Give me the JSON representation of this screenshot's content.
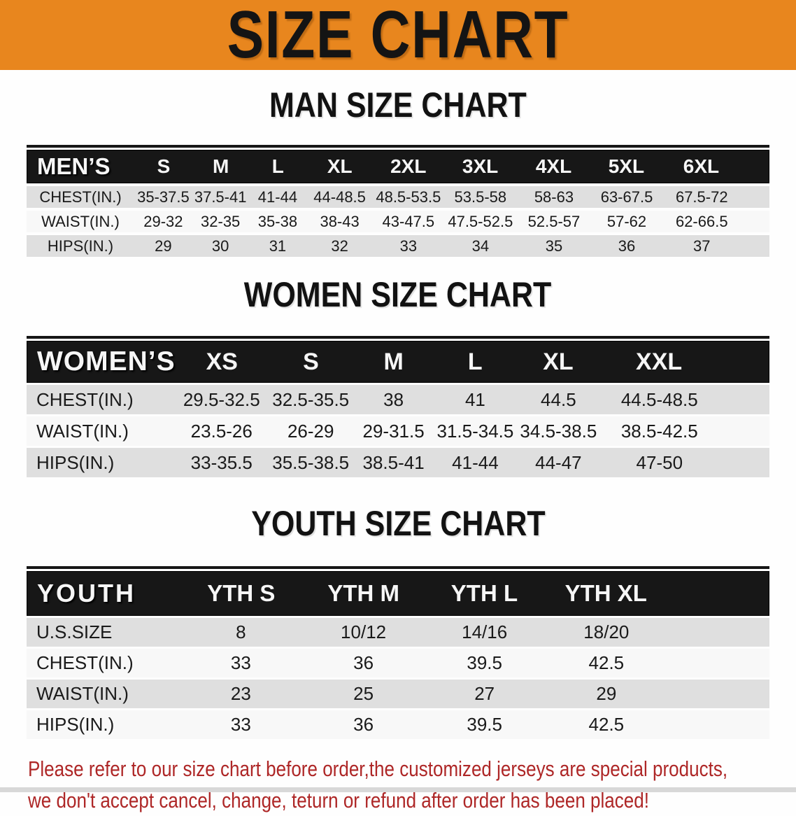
{
  "banner": {
    "title": "SIZE CHART",
    "bg_color": "#E8861E"
  },
  "colors": {
    "header_bar": "#171717",
    "row_gray": "#DFDFDF",
    "row_white": "#F8F8F8",
    "note_red": "#AE2727"
  },
  "sections": {
    "men": {
      "heading": "MAN SIZE CHART",
      "header": [
        "MEN’S",
        "S",
        "M",
        "L",
        "XL",
        "2XL",
        "3XL",
        "4XL",
        "5XL",
        "6XL"
      ],
      "rows": [
        {
          "label": "CHEST(IN.)",
          "values": [
            "35-37.5",
            "37.5-41",
            "41-44",
            "44-48.5",
            "48.5-53.5",
            "53.5-58",
            "58-63",
            "63-67.5",
            "67.5-72"
          ]
        },
        {
          "label": "WAIST(IN.)",
          "values": [
            "29-32",
            "32-35",
            "35-38",
            "38-43",
            "43-47.5",
            "47.5-52.5",
            "52.5-57",
            "57-62",
            "62-66.5"
          ]
        },
        {
          "label": "HIPS(IN.)",
          "values": [
            "29",
            "30",
            "31",
            "32",
            "33",
            "34",
            "35",
            "36",
            "37"
          ]
        }
      ]
    },
    "women": {
      "heading": "WOMEN SIZE CHART",
      "header": [
        "WOMEN’S",
        "XS",
        "S",
        "M",
        "L",
        "XL",
        "XXL"
      ],
      "rows": [
        {
          "label": "CHEST(IN.)",
          "values": [
            "29.5-32.5",
            "32.5-35.5",
            "38",
            "41",
            "44.5",
            "44.5-48.5"
          ]
        },
        {
          "label": "WAIST(IN.)",
          "values": [
            "23.5-26",
            "26-29",
            "29-31.5",
            "31.5-34.5",
            "34.5-38.5",
            "38.5-42.5"
          ]
        },
        {
          "label": "HIPS(IN.)",
          "values": [
            "33-35.5",
            "35.5-38.5",
            "38.5-41",
            "41-44",
            "44-47",
            "47-50"
          ]
        }
      ]
    },
    "youth": {
      "heading": "YOUTH SIZE CHART",
      "header": [
        "YOUTH",
        "YTH S",
        "YTH M",
        "YTH L",
        "YTH XL"
      ],
      "rows": [
        {
          "label": "U.S.SIZE",
          "values": [
            "8",
            "10/12",
            "14/16",
            "18/20"
          ]
        },
        {
          "label": "CHEST(IN.)",
          "values": [
            "33",
            "36",
            "39.5",
            "42.5"
          ]
        },
        {
          "label": "WAIST(IN.)",
          "values": [
            "23",
            "25",
            "27",
            "29"
          ]
        },
        {
          "label": "HIPS(IN.)",
          "values": [
            "33",
            "36",
            "39.5",
            "42.5"
          ]
        }
      ]
    }
  },
  "note": {
    "line1": "Please refer to our size chart before order,the customized jerseys are special products,",
    "line2": "we don't accept cancel, change, teturn or refund after order has been placed!"
  }
}
